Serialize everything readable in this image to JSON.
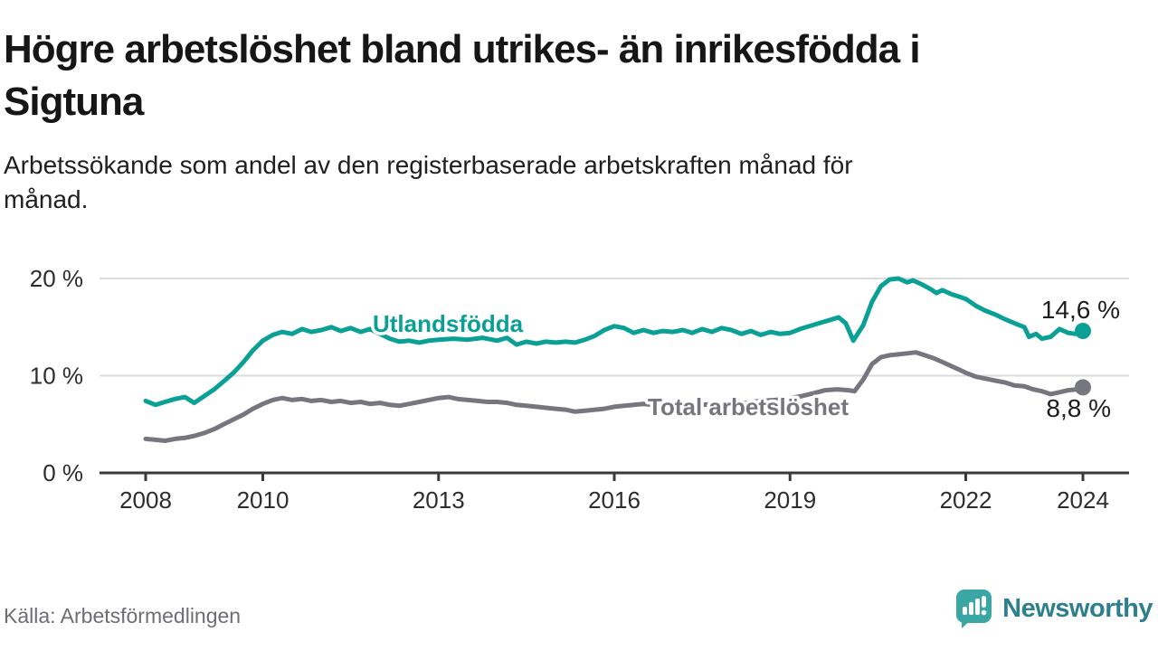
{
  "header": {
    "title_lines": [
      "Högre arbetslöshet bland utrikes- än inrikesfödda i",
      "Sigtuna"
    ],
    "subtitle_lines": [
      "Arbetssökande som andel av den registerbaserade arbetskraften månad för",
      "månad."
    ]
  },
  "footer": {
    "source": "Källa: Arbetsförmedlingen",
    "brand": "Newsworthy",
    "logo_icon": "speech-bubble-bar-chart-icon",
    "brand_color": "#2e7f8e",
    "icon_color": "#3aa7a4"
  },
  "colors": {
    "foreign_born_line": "#0ba096",
    "total_line": "#76767e",
    "gridline": "#dcdcdc",
    "axis": "#3a3a3a",
    "axis_text": "#2d2d2d",
    "value_label_text": "#1d1d1d",
    "background": "#ffffff"
  },
  "chart_data": {
    "type": "line",
    "title": "Högre arbetslöshet bland utrikes- än inrikesfödda i Sigtuna",
    "subtitle": "Arbetssökande som andel av den registerbaserade arbetskraften månad för månad.",
    "unit": "%",
    "grid": true,
    "legend_position": "inline-labels",
    "x_axis": {
      "ticks": [
        {
          "value": 2008,
          "label": "2008"
        },
        {
          "value": 2010,
          "label": "2010"
        },
        {
          "value": 2013,
          "label": "2013"
        },
        {
          "value": 2016,
          "label": "2016"
        },
        {
          "value": 2019,
          "label": "2019"
        },
        {
          "value": 2022,
          "label": "2022"
        },
        {
          "value": 2024,
          "label": "2024"
        }
      ],
      "xlim": [
        2007.2,
        2024.8
      ]
    },
    "y_axis": {
      "ticks": [
        {
          "value": 0,
          "label": "0 %"
        },
        {
          "value": 10,
          "label": "10 %"
        },
        {
          "value": 20,
          "label": "20 %"
        }
      ],
      "ylim": [
        0,
        21
      ]
    },
    "series": [
      {
        "id": "total",
        "name": "Total arbetslöshet",
        "color": "#76767e",
        "end_value": 8.8,
        "end_label": "8,8 %",
        "points": [
          [
            2008.0,
            3.5
          ],
          [
            2008.17,
            3.4
          ],
          [
            2008.33,
            3.3
          ],
          [
            2008.5,
            3.5
          ],
          [
            2008.67,
            3.6
          ],
          [
            2008.83,
            3.8
          ],
          [
            2009.0,
            4.1
          ],
          [
            2009.17,
            4.5
          ],
          [
            2009.33,
            5.0
          ],
          [
            2009.5,
            5.5
          ],
          [
            2009.67,
            6.0
          ],
          [
            2009.83,
            6.6
          ],
          [
            2010.0,
            7.1
          ],
          [
            2010.17,
            7.5
          ],
          [
            2010.33,
            7.7
          ],
          [
            2010.5,
            7.5
          ],
          [
            2010.67,
            7.6
          ],
          [
            2010.83,
            7.4
          ],
          [
            2011.0,
            7.5
          ],
          [
            2011.17,
            7.3
          ],
          [
            2011.33,
            7.4
          ],
          [
            2011.5,
            7.2
          ],
          [
            2011.67,
            7.3
          ],
          [
            2011.83,
            7.1
          ],
          [
            2012.0,
            7.2
          ],
          [
            2012.17,
            7.0
          ],
          [
            2012.33,
            6.9
          ],
          [
            2012.5,
            7.1
          ],
          [
            2012.67,
            7.3
          ],
          [
            2012.83,
            7.5
          ],
          [
            2013.0,
            7.7
          ],
          [
            2013.17,
            7.8
          ],
          [
            2013.33,
            7.6
          ],
          [
            2013.5,
            7.5
          ],
          [
            2013.67,
            7.4
          ],
          [
            2013.83,
            7.3
          ],
          [
            2014.0,
            7.3
          ],
          [
            2014.17,
            7.2
          ],
          [
            2014.33,
            7.0
          ],
          [
            2014.5,
            6.9
          ],
          [
            2014.67,
            6.8
          ],
          [
            2014.83,
            6.7
          ],
          [
            2015.0,
            6.6
          ],
          [
            2015.17,
            6.5
          ],
          [
            2015.33,
            6.3
          ],
          [
            2015.5,
            6.4
          ],
          [
            2015.67,
            6.5
          ],
          [
            2015.83,
            6.6
          ],
          [
            2016.0,
            6.8
          ],
          [
            2016.17,
            6.9
          ],
          [
            2016.33,
            7.0
          ],
          [
            2016.5,
            7.1
          ],
          [
            2016.67,
            7.0
          ],
          [
            2016.83,
            7.1
          ],
          [
            2017.0,
            7.0
          ],
          [
            2017.25,
            7.1
          ],
          [
            2017.5,
            7.0
          ],
          [
            2017.75,
            7.1
          ],
          [
            2018.0,
            7.1
          ],
          [
            2018.25,
            7.2
          ],
          [
            2018.5,
            7.4
          ],
          [
            2018.75,
            7.5
          ],
          [
            2019.0,
            7.7
          ],
          [
            2019.2,
            7.9
          ],
          [
            2019.4,
            8.2
          ],
          [
            2019.6,
            8.5
          ],
          [
            2019.8,
            8.6
          ],
          [
            2020.0,
            8.5
          ],
          [
            2020.1,
            8.4
          ],
          [
            2020.25,
            9.6
          ],
          [
            2020.4,
            11.2
          ],
          [
            2020.55,
            11.9
          ],
          [
            2020.7,
            12.1
          ],
          [
            2020.85,
            12.2
          ],
          [
            2021.0,
            12.3
          ],
          [
            2021.15,
            12.4
          ],
          [
            2021.3,
            12.1
          ],
          [
            2021.45,
            11.8
          ],
          [
            2021.6,
            11.4
          ],
          [
            2021.75,
            11.0
          ],
          [
            2021.9,
            10.6
          ],
          [
            2022.0,
            10.3
          ],
          [
            2022.17,
            9.9
          ],
          [
            2022.33,
            9.7
          ],
          [
            2022.5,
            9.5
          ],
          [
            2022.67,
            9.3
          ],
          [
            2022.83,
            9.0
          ],
          [
            2023.0,
            8.9
          ],
          [
            2023.15,
            8.6
          ],
          [
            2023.3,
            8.4
          ],
          [
            2023.45,
            8.1
          ],
          [
            2023.6,
            8.3
          ],
          [
            2023.75,
            8.5
          ],
          [
            2023.9,
            8.6
          ],
          [
            2024.0,
            8.8
          ]
        ]
      },
      {
        "id": "utlandsfodda",
        "name": "Utlandsfödda",
        "color": "#0ba096",
        "end_value": 14.6,
        "end_label": "14,6 %",
        "points": [
          [
            2008.0,
            7.4
          ],
          [
            2008.17,
            7.0
          ],
          [
            2008.33,
            7.3
          ],
          [
            2008.5,
            7.6
          ],
          [
            2008.67,
            7.8
          ],
          [
            2008.83,
            7.2
          ],
          [
            2009.0,
            7.9
          ],
          [
            2009.17,
            8.6
          ],
          [
            2009.33,
            9.4
          ],
          [
            2009.5,
            10.3
          ],
          [
            2009.67,
            11.4
          ],
          [
            2009.83,
            12.6
          ],
          [
            2010.0,
            13.6
          ],
          [
            2010.17,
            14.2
          ],
          [
            2010.33,
            14.5
          ],
          [
            2010.5,
            14.3
          ],
          [
            2010.67,
            14.8
          ],
          [
            2010.83,
            14.5
          ],
          [
            2011.0,
            14.7
          ],
          [
            2011.17,
            15.0
          ],
          [
            2011.33,
            14.6
          ],
          [
            2011.5,
            14.9
          ],
          [
            2011.67,
            14.5
          ],
          [
            2011.83,
            14.8
          ],
          [
            2012.0,
            14.3
          ],
          [
            2012.17,
            13.8
          ],
          [
            2012.33,
            13.5
          ],
          [
            2012.5,
            13.6
          ],
          [
            2012.67,
            13.4
          ],
          [
            2012.83,
            13.6
          ],
          [
            2013.0,
            13.7
          ],
          [
            2013.25,
            13.8
          ],
          [
            2013.5,
            13.7
          ],
          [
            2013.75,
            13.9
          ],
          [
            2014.0,
            13.6
          ],
          [
            2014.17,
            13.9
          ],
          [
            2014.33,
            13.2
          ],
          [
            2014.5,
            13.5
          ],
          [
            2014.67,
            13.3
          ],
          [
            2014.83,
            13.5
          ],
          [
            2015.0,
            13.4
          ],
          [
            2015.17,
            13.5
          ],
          [
            2015.33,
            13.4
          ],
          [
            2015.5,
            13.7
          ],
          [
            2015.67,
            14.1
          ],
          [
            2015.83,
            14.7
          ],
          [
            2016.0,
            15.1
          ],
          [
            2016.17,
            14.9
          ],
          [
            2016.33,
            14.4
          ],
          [
            2016.5,
            14.7
          ],
          [
            2016.67,
            14.4
          ],
          [
            2016.83,
            14.6
          ],
          [
            2017.0,
            14.5
          ],
          [
            2017.17,
            14.7
          ],
          [
            2017.33,
            14.4
          ],
          [
            2017.5,
            14.8
          ],
          [
            2017.67,
            14.5
          ],
          [
            2017.83,
            14.9
          ],
          [
            2018.0,
            14.7
          ],
          [
            2018.17,
            14.3
          ],
          [
            2018.33,
            14.6
          ],
          [
            2018.5,
            14.2
          ],
          [
            2018.67,
            14.5
          ],
          [
            2018.83,
            14.3
          ],
          [
            2019.0,
            14.4
          ],
          [
            2019.17,
            14.8
          ],
          [
            2019.33,
            15.1
          ],
          [
            2019.5,
            15.4
          ],
          [
            2019.67,
            15.7
          ],
          [
            2019.83,
            16.0
          ],
          [
            2019.95,
            15.4
          ],
          [
            2020.08,
            13.6
          ],
          [
            2020.25,
            15.2
          ],
          [
            2020.4,
            17.6
          ],
          [
            2020.55,
            19.2
          ],
          [
            2020.7,
            19.9
          ],
          [
            2020.85,
            20.0
          ],
          [
            2021.0,
            19.6
          ],
          [
            2021.1,
            19.8
          ],
          [
            2021.25,
            19.4
          ],
          [
            2021.4,
            18.9
          ],
          [
            2021.5,
            18.5
          ],
          [
            2021.6,
            18.8
          ],
          [
            2021.75,
            18.4
          ],
          [
            2021.9,
            18.1
          ],
          [
            2022.0,
            17.9
          ],
          [
            2022.17,
            17.2
          ],
          [
            2022.33,
            16.7
          ],
          [
            2022.5,
            16.3
          ],
          [
            2022.67,
            15.8
          ],
          [
            2022.83,
            15.4
          ],
          [
            2023.0,
            15.0
          ],
          [
            2023.08,
            14.0
          ],
          [
            2023.2,
            14.3
          ],
          [
            2023.3,
            13.8
          ],
          [
            2023.45,
            14.0
          ],
          [
            2023.6,
            14.8
          ],
          [
            2023.75,
            14.4
          ],
          [
            2023.88,
            14.3
          ],
          [
            2024.0,
            14.6
          ]
        ]
      }
    ]
  }
}
